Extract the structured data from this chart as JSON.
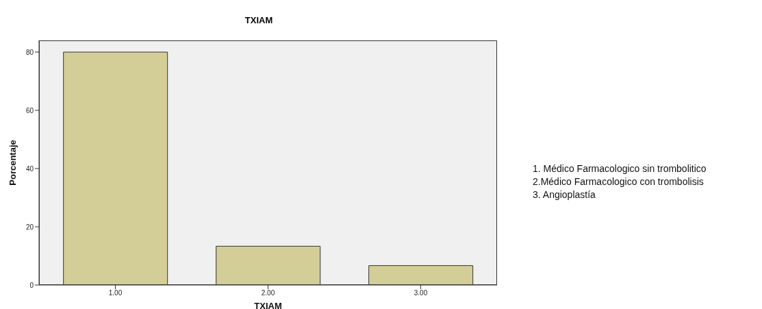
{
  "chart_data": {
    "type": "bar",
    "title": "TXIAM",
    "xlabel": "TXIAM",
    "ylabel": "Porcentaje",
    "categories": [
      "1.00",
      "2.00",
      "3.00"
    ],
    "values": [
      80,
      13.33,
      6.67
    ],
    "color": "#d3ce97",
    "ylim": [
      0,
      84
    ],
    "yticks": [
      0,
      20,
      40,
      60,
      80
    ],
    "grid": false,
    "annotations": [
      "1. Médico Farmacologico sin trombolitico",
      "2.Médico Farmacologico con trombolisis",
      "3. Angioplastía"
    ]
  }
}
